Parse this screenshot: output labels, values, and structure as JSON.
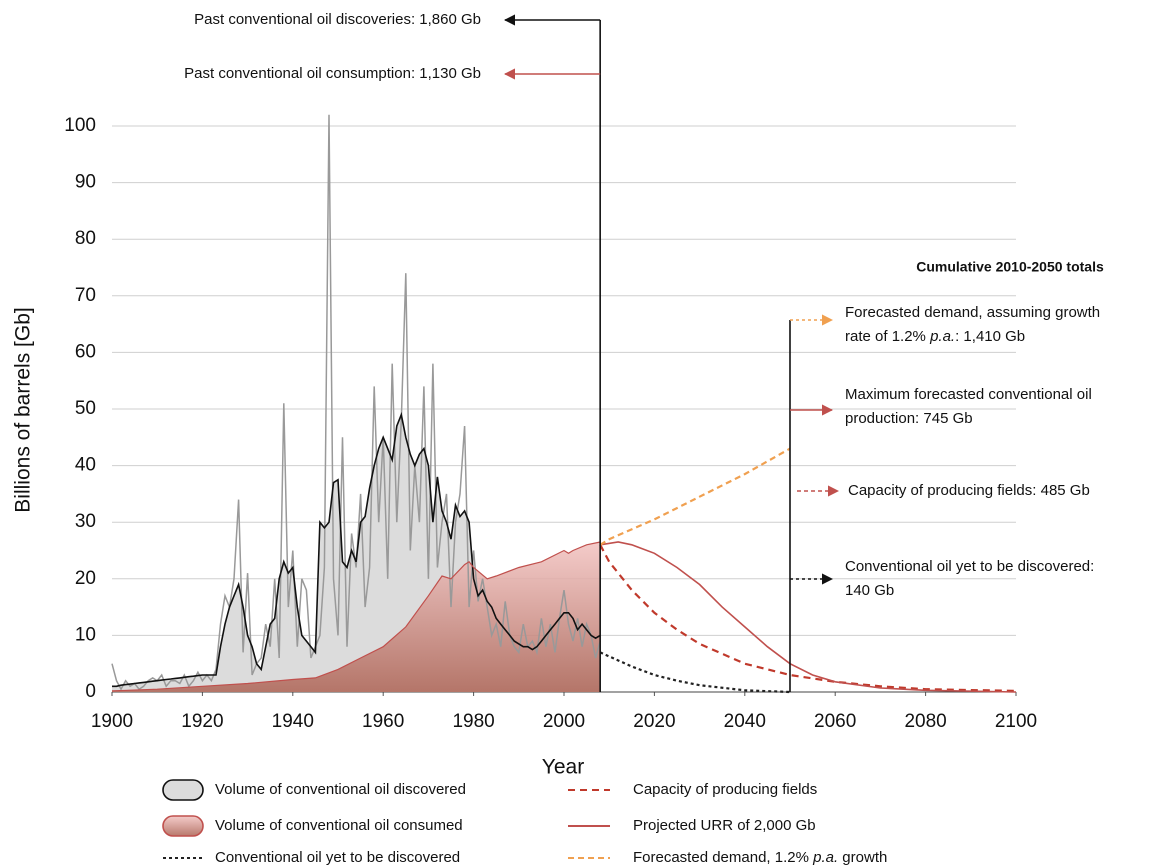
{
  "chart_data": {
    "type": "line",
    "xlabel": "Year",
    "ylabel": "Billions of barrels [Gb]",
    "xlim": [
      1900,
      2100
    ],
    "xticks": [
      1900,
      1920,
      1940,
      1960,
      1980,
      2000,
      2020,
      2040,
      2060,
      2080,
      2100
    ],
    "ylim": [
      0,
      100
    ],
    "yticks": [
      0,
      10,
      20,
      30,
      40,
      50,
      60,
      70,
      80,
      90,
      100
    ],
    "grid": true,
    "series": [
      {
        "name": "Volume of conventional oil discovered",
        "color": "#111111",
        "fill": "#dcdcdc",
        "raw_color": "#999999",
        "x": [
          1900,
          1901,
          1902,
          1903,
          1904,
          1905,
          1906,
          1907,
          1908,
          1909,
          1910,
          1911,
          1912,
          1913,
          1914,
          1915,
          1916,
          1917,
          1918,
          1919,
          1920,
          1921,
          1922,
          1923,
          1924,
          1925,
          1926,
          1927,
          1928,
          1929,
          1930,
          1931,
          1932,
          1933,
          1934,
          1935,
          1936,
          1937,
          1938,
          1939,
          1940,
          1941,
          1942,
          1943,
          1944,
          1945,
          1946,
          1947,
          1948,
          1949,
          1950,
          1951,
          1952,
          1953,
          1954,
          1955,
          1956,
          1957,
          1958,
          1959,
          1960,
          1961,
          1962,
          1963,
          1964,
          1965,
          1966,
          1967,
          1968,
          1969,
          1970,
          1971,
          1972,
          1973,
          1974,
          1975,
          1976,
          1977,
          1978,
          1979,
          1980,
          1981,
          1982,
          1983,
          1984,
          1985,
          1986,
          1987,
          1988,
          1989,
          1990,
          1991,
          1992,
          1993,
          1994,
          1995,
          1996,
          1997,
          1998,
          1999,
          2000,
          2001,
          2002,
          2003,
          2004,
          2005,
          2006,
          2007,
          2008
        ],
        "values": [
          1,
          1,
          1.2,
          1.3,
          1.4,
          1.5,
          1.6,
          1.7,
          1.8,
          1.9,
          2,
          2.1,
          2.2,
          2.3,
          2.4,
          2.5,
          2.6,
          2.7,
          2.8,
          2.9,
          3,
          3,
          3,
          3,
          8,
          12,
          15,
          17,
          19,
          15,
          10,
          8,
          5,
          4,
          8,
          12,
          13,
          20,
          23,
          21,
          22,
          15,
          10,
          9,
          8,
          7,
          30,
          29,
          30,
          37,
          37.5,
          23,
          22,
          25,
          23,
          30,
          31,
          36,
          40,
          43,
          45,
          43,
          41,
          47,
          49,
          45,
          42,
          40,
          42,
          43,
          40,
          30,
          38,
          32,
          30,
          27,
          33,
          31,
          32,
          30,
          20,
          17,
          18,
          16,
          15,
          13,
          12,
          11,
          10,
          9,
          8.5,
          8,
          8,
          7.5,
          8,
          9,
          10,
          11,
          12,
          13,
          14,
          14,
          13,
          11,
          12,
          11,
          10,
          9.5,
          10
        ],
        "raw_values": [
          5,
          2,
          0.5,
          2,
          1,
          1.5,
          0.5,
          1,
          2,
          2.5,
          2,
          3,
          1,
          2,
          2,
          1.5,
          3,
          1,
          2,
          3.5,
          2,
          3,
          2,
          4,
          12,
          17,
          15,
          20,
          34,
          7,
          21,
          3,
          5,
          6,
          12,
          8,
          20,
          6,
          51,
          15,
          25,
          8,
          20,
          18,
          6,
          8,
          10,
          22,
          102,
          20,
          10,
          45,
          8,
          28,
          22,
          35,
          15,
          22,
          54,
          30,
          45,
          20,
          58,
          30,
          48,
          74,
          25,
          40,
          30,
          54,
          20,
          58,
          22,
          30,
          35,
          15,
          30,
          35,
          47,
          15,
          25,
          16,
          20,
          15,
          10,
          12,
          8,
          16,
          10,
          8,
          7,
          12,
          8,
          9,
          7,
          13,
          8,
          12,
          7,
          13,
          18,
          12,
          9,
          13,
          8,
          12,
          10,
          6,
          9
        ]
      },
      {
        "name": "Volume of conventional oil consumed",
        "color": "#c0504d",
        "fill": "#ecaaa8",
        "x": [
          1900,
          1910,
          1920,
          1930,
          1940,
          1945,
          1950,
          1955,
          1960,
          1965,
          1970,
          1973,
          1975,
          1978,
          1979,
          1980,
          1983,
          1985,
          1990,
          1995,
          2000,
          2001,
          2002,
          2005,
          2008
        ],
        "values": [
          0.2,
          0.5,
          1,
          1.5,
          2.2,
          2.5,
          4,
          6,
          8,
          11.5,
          17,
          20.5,
          20,
          22.5,
          23,
          22,
          20,
          20.5,
          22,
          23,
          25,
          24.5,
          25,
          26,
          26.5
        ]
      },
      {
        "name": "Conventional oil yet to be discovered",
        "color": "#222222",
        "dash": "3,3",
        "x": [
          2008,
          2015,
          2020,
          2025,
          2030,
          2040,
          2050
        ],
        "values": [
          7,
          4.5,
          3,
          2,
          1.2,
          0.3,
          0
        ]
      },
      {
        "name": "Capacity of producing fields",
        "color": "#c0392b",
        "dash": "7,5",
        "x": [
          2008,
          2010,
          2015,
          2020,
          2025,
          2030,
          2040,
          2050,
          2060,
          2070,
          2080,
          2100
        ],
        "values": [
          26,
          23,
          18,
          14,
          11,
          8.5,
          5,
          3,
          1.8,
          1,
          0.5,
          0.2
        ]
      },
      {
        "name": "Projected URR of 2,000 Gb",
        "color": "#c0504d",
        "x": [
          2008,
          2012,
          2015,
          2020,
          2025,
          2030,
          2035,
          2040,
          2045,
          2050,
          2055,
          2060,
          2070,
          2080,
          2100
        ],
        "values": [
          26,
          26.5,
          26,
          24.5,
          22,
          19,
          15,
          11.5,
          8,
          5,
          3,
          1.8,
          0.7,
          0.3,
          0
        ]
      },
      {
        "name": "Forecasted demand, 1.2% p.a. growth",
        "name_parts": [
          "Forecasted demand, 1.2% ",
          "p.a.",
          " growth"
        ],
        "color": "#f0a050",
        "dash": "6,4",
        "x": [
          2008,
          2010,
          2020,
          2030,
          2040,
          2050
        ],
        "values": [
          26,
          27,
          30.5,
          34.5,
          38.5,
          43
        ]
      }
    ],
    "totals_title": "Cumulative 2010-2050 totals",
    "annotations": [
      {
        "lines": [
          [
            {
              "text": "Past conventional oil discoveries: 1,860 Gb"
            }
          ]
        ]
      },
      {
        "lines": [
          [
            {
              "text": "Past conventional oil consumption: 1,130 Gb"
            }
          ]
        ]
      },
      {
        "lines": [
          [
            {
              "text": "Forecasted demand, assuming growth"
            }
          ],
          [
            {
              "text": "rate of 1.2% "
            },
            {
              "text": "p.a.",
              "italic": true
            },
            {
              "text": ": 1,410 Gb"
            }
          ]
        ]
      },
      {
        "lines": [
          [
            {
              "text": "Maximum forecasted conventional oil"
            }
          ],
          [
            {
              "text": "production: 745 Gb"
            }
          ]
        ]
      },
      {
        "lines": [
          [
            {
              "text": "Capacity of producing fields: 485 Gb"
            }
          ]
        ]
      },
      {
        "lines": [
          [
            {
              "text": "Conventional oil yet to be discovered:"
            }
          ],
          [
            {
              "text": "140 Gb"
            }
          ]
        ]
      }
    ]
  }
}
